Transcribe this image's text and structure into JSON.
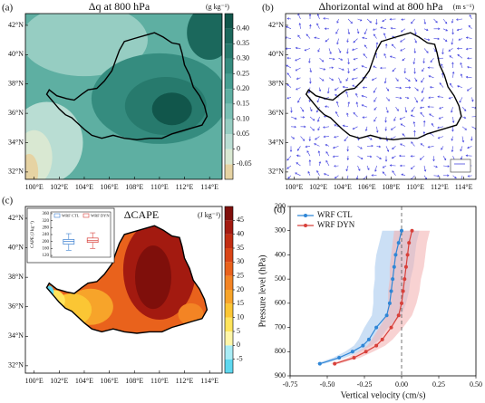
{
  "chart_data": [
    {
      "type": "contour-map",
      "panel": "(a)",
      "title": "Δq at 800 hPa",
      "units": "(g kg⁻¹)",
      "xlim": [
        99.3,
        115
      ],
      "ylim": [
        31.5,
        42.8
      ],
      "xticks": [
        {
          "value": 100,
          "label": "100°E"
        },
        {
          "value": 102,
          "label": "102°E"
        },
        {
          "value": 104,
          "label": "104°E"
        },
        {
          "value": 106,
          "label": "106°E"
        },
        {
          "value": 108,
          "label": "108°E"
        },
        {
          "value": 110,
          "label": "110°E"
        },
        {
          "value": 112,
          "label": "112°E"
        },
        {
          "value": 114,
          "label": "114°E"
        }
      ],
      "yticks": [
        {
          "value": 32,
          "label": "32°N"
        },
        {
          "value": 34,
          "label": "34°N"
        },
        {
          "value": 36,
          "label": "36°N"
        },
        {
          "value": 38,
          "label": "38°N"
        },
        {
          "value": 40,
          "label": "40°N"
        },
        {
          "value": 42,
          "label": "42°N"
        }
      ],
      "clim": [
        -0.1,
        0.45
      ],
      "cticks": [
        -0.05,
        0,
        0.05,
        {
          "value": 0.1,
          "label": "0.10"
        },
        0.15,
        {
          "value": 0.2,
          "label": "0.20"
        },
        0.25,
        {
          "value": 0.3,
          "label": "0.30"
        },
        0.35,
        {
          "value": 0.4,
          "label": "0.40"
        }
      ],
      "colors": [
        "#e6d3a3",
        "#d9e8d2",
        "#b9ddd3",
        "#96cdc2",
        "#79bfb3",
        "#5eafa2",
        "#469e91",
        "#358c7f",
        "#277a6d",
        "#1b685c",
        "#11564b"
      ]
    },
    {
      "type": "vector-map",
      "panel": "(b)",
      "title": "Δhorizontal wind at 800 hPa",
      "units": "(m s⁻¹)",
      "color": "#4646e0",
      "xlim": [
        99.3,
        115
      ],
      "ylim": [
        31.5,
        42.8
      ],
      "xticks": [
        {
          "value": 100,
          "label": "100°E"
        },
        {
          "value": 102,
          "label": "102°E"
        },
        {
          "value": 104,
          "label": "104°E"
        },
        {
          "value": 106,
          "label": "106°E"
        },
        {
          "value": 108,
          "label": "108°E"
        },
        {
          "value": 110,
          "label": "110°E"
        },
        {
          "value": 112,
          "label": "112°E"
        },
        {
          "value": 114,
          "label": "114°E"
        }
      ],
      "yticks": [
        {
          "value": 32,
          "label": "32°N"
        },
        {
          "value": 34,
          "label": "34°N"
        },
        {
          "value": 36,
          "label": "36°N"
        },
        {
          "value": 38,
          "label": "38°N"
        },
        {
          "value": 40,
          "label": "40°N"
        },
        {
          "value": 42,
          "label": "42°N"
        }
      ]
    },
    {
      "type": "filled-map",
      "panel": "(c)",
      "title": "ΔCAPE",
      "units": "(J kg⁻¹)",
      "xlim": [
        99.3,
        115
      ],
      "ylim": [
        31.5,
        42.8
      ],
      "xticks": [
        {
          "value": 100,
          "label": "100°E"
        },
        {
          "value": 102,
          "label": "102°E"
        },
        {
          "value": 104,
          "label": "104°E"
        },
        {
          "value": 106,
          "label": "106°E"
        },
        {
          "value": 108,
          "label": "108°E"
        },
        {
          "value": 110,
          "label": "110°E"
        },
        {
          "value": 112,
          "label": "112°E"
        },
        {
          "value": 114,
          "label": "114°E"
        }
      ],
      "yticks": [
        {
          "value": 32,
          "label": "32°N"
        },
        {
          "value": 34,
          "label": "34°N"
        },
        {
          "value": 36,
          "label": "36°N"
        },
        {
          "value": 38,
          "label": "38°N"
        },
        {
          "value": 40,
          "label": "40°N"
        },
        {
          "value": 42,
          "label": "42°N"
        }
      ],
      "clim": [
        -10,
        50
      ],
      "cticks": [
        -5,
        0,
        5,
        10,
        15,
        20,
        25,
        30,
        35,
        40,
        45
      ],
      "colors": [
        "#5fd8ef",
        "#a9ecf5",
        "#fff6a8",
        "#ffe45c",
        "#fbc634",
        "#f7a42a",
        "#f38424",
        "#e9621c",
        "#d94517",
        "#c22d12",
        "#a31a10",
        "#7f0f0b"
      ],
      "inset": {
        "type": "box",
        "ylabel": "CAPE (J kg⁻¹)",
        "ylim": [
          110,
          370
        ],
        "yticks": [
          120,
          160,
          200,
          240,
          280,
          320,
          360
        ],
        "boxes": [
          {
            "name": "WRF CTL",
            "color": "#3a7fd0",
            "low": 150,
            "q1": 185,
            "median": 200,
            "q3": 212,
            "high": 245
          },
          {
            "name": "WRF DYN",
            "color": "#d8403a",
            "low": 160,
            "q1": 195,
            "median": 205,
            "q3": 220,
            "high": 250
          }
        ]
      }
    },
    {
      "type": "line",
      "panel": "(d)",
      "xlabel": "Vertical velocity (cm/s)",
      "ylabel": "Pressure level (hPa)",
      "xlim": [
        -0.75,
        0.5
      ],
      "xticks": [
        {
          "value": -0.75,
          "label": "-0.75"
        },
        {
          "value": -0.5,
          "label": "-0.50"
        },
        {
          "value": -0.25,
          "label": "-0.25"
        },
        {
          "value": 0,
          "label": "0.00"
        },
        {
          "value": 0.25,
          "label": "0.25"
        },
        {
          "value": 0.5,
          "label": "0.50"
        }
      ],
      "ylim": [
        900,
        200
      ],
      "yticks": [
        200,
        300,
        400,
        500,
        600,
        700,
        800,
        900
      ],
      "vline": 0,
      "y": [
        850,
        825,
        800,
        775,
        750,
        700,
        650,
        600,
        550,
        500,
        450,
        400,
        350,
        300
      ],
      "series": [
        {
          "name": "WRF CTL",
          "color": "#2f86d6",
          "band_color": "#a9c9ef",
          "values": [
            -0.55,
            -0.42,
            -0.33,
            -0.26,
            -0.22,
            -0.17,
            -0.1,
            -0.08,
            -0.07,
            -0.06,
            -0.05,
            -0.04,
            -0.02,
            0.0
          ],
          "lower": [
            -0.58,
            -0.46,
            -0.38,
            -0.32,
            -0.29,
            -0.25,
            -0.2,
            -0.19,
            -0.19,
            -0.18,
            -0.18,
            -0.17,
            -0.15,
            -0.13
          ],
          "upper": [
            -0.52,
            -0.38,
            -0.28,
            -0.2,
            -0.15,
            -0.09,
            0.0,
            0.03,
            0.05,
            0.06,
            0.08,
            0.09,
            0.1,
            0.12
          ]
        },
        {
          "name": "WRF DYN",
          "color": "#d8403a",
          "band_color": "#f4b4b4",
          "values": [
            -0.45,
            -0.32,
            -0.24,
            -0.17,
            -0.13,
            -0.07,
            -0.02,
            0.0,
            0.01,
            0.02,
            0.03,
            0.04,
            0.05,
            0.07
          ],
          "lower": [
            -0.48,
            -0.36,
            -0.29,
            -0.23,
            -0.2,
            -0.15,
            -0.1,
            -0.09,
            -0.09,
            -0.08,
            -0.08,
            -0.07,
            -0.06,
            -0.05
          ],
          "upper": [
            -0.42,
            -0.28,
            -0.19,
            -0.11,
            -0.06,
            0.01,
            0.07,
            0.1,
            0.12,
            0.13,
            0.15,
            0.16,
            0.17,
            0.19
          ]
        }
      ]
    }
  ]
}
